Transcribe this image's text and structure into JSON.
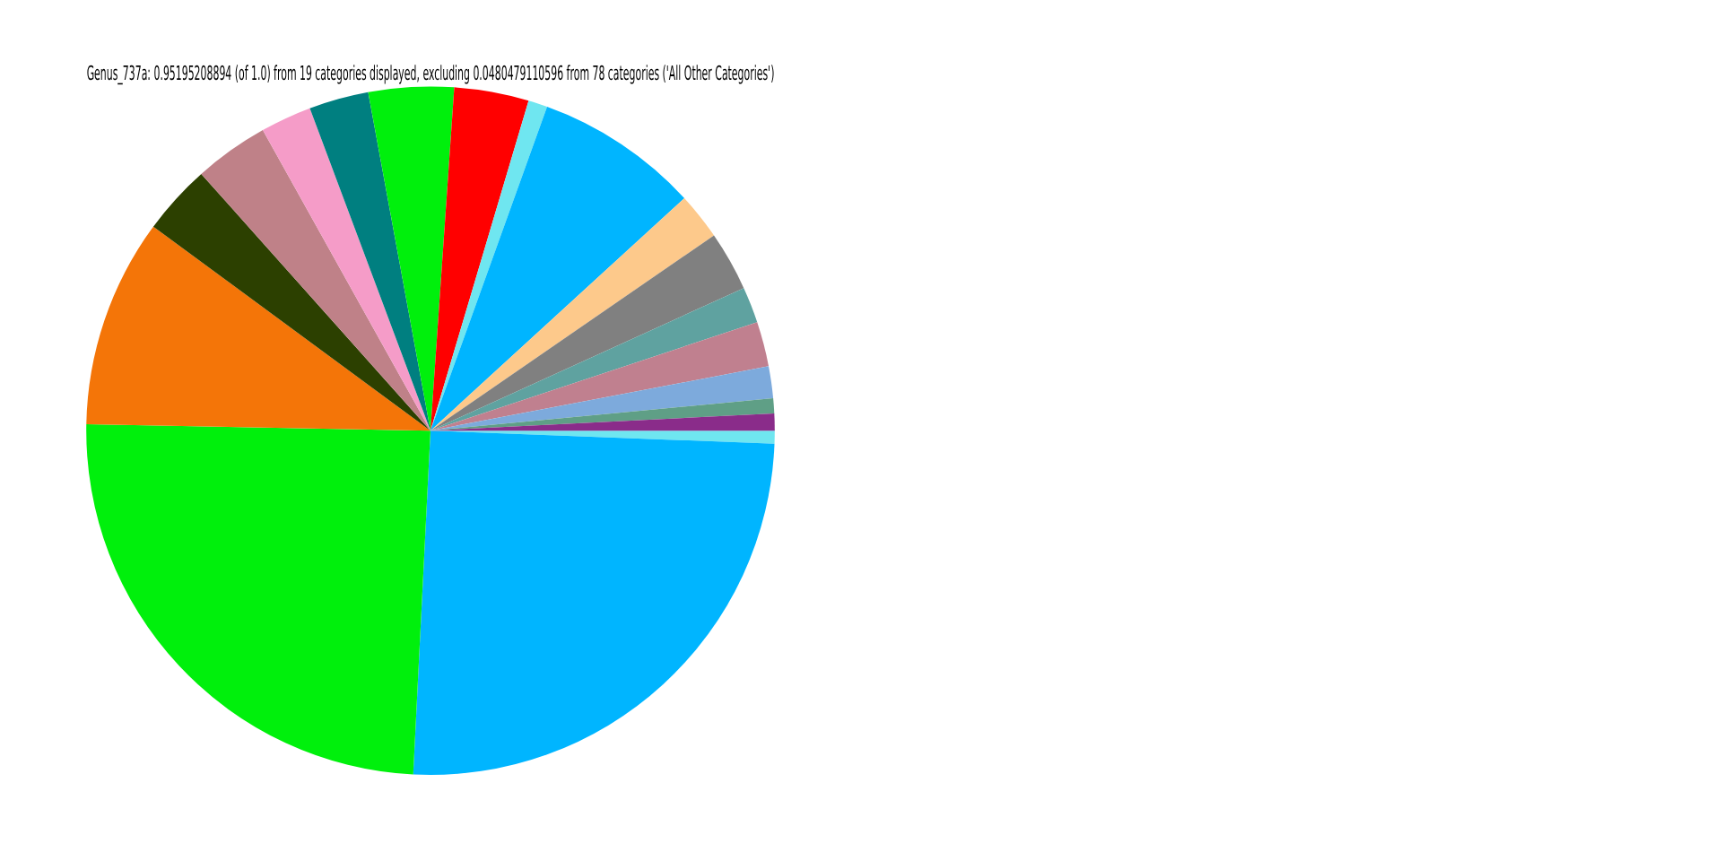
{
  "chart_data": {
    "type": "pie",
    "title": "Genus_737a: 0.95195208894 (of 1.0) from 19 categories displayed, excluding 0.0480479110596 from 78 categories ('All Other Categories')",
    "categories": [
      null,
      null,
      null,
      null,
      null,
      null,
      null,
      null,
      null,
      null,
      null,
      null,
      null,
      null,
      null,
      null,
      null,
      null,
      null
    ],
    "values": [
      0.6,
      25.2,
      24.5,
      9.8,
      3.3,
      3.5,
      2.4,
      2.8,
      4.0,
      3.5,
      0.9,
      7.7,
      2.2,
      2.8,
      1.7,
      2.1,
      1.5,
      0.7,
      0.8
    ],
    "colors": [
      "#6fe6f0",
      "#00b5ff",
      "#00f00c",
      "#f47508",
      "#2c4000",
      "#bf8188",
      "#f59cc8",
      "#007f80",
      "#00f00c",
      "#ff0000",
      "#6fe6f0",
      "#00b5ff",
      "#fdc98b",
      "#808080",
      "#5fa2a0",
      "#c0808f",
      "#7daadc",
      "#5f9f86",
      "#8a2c8a"
    ],
    "legend": false
  }
}
